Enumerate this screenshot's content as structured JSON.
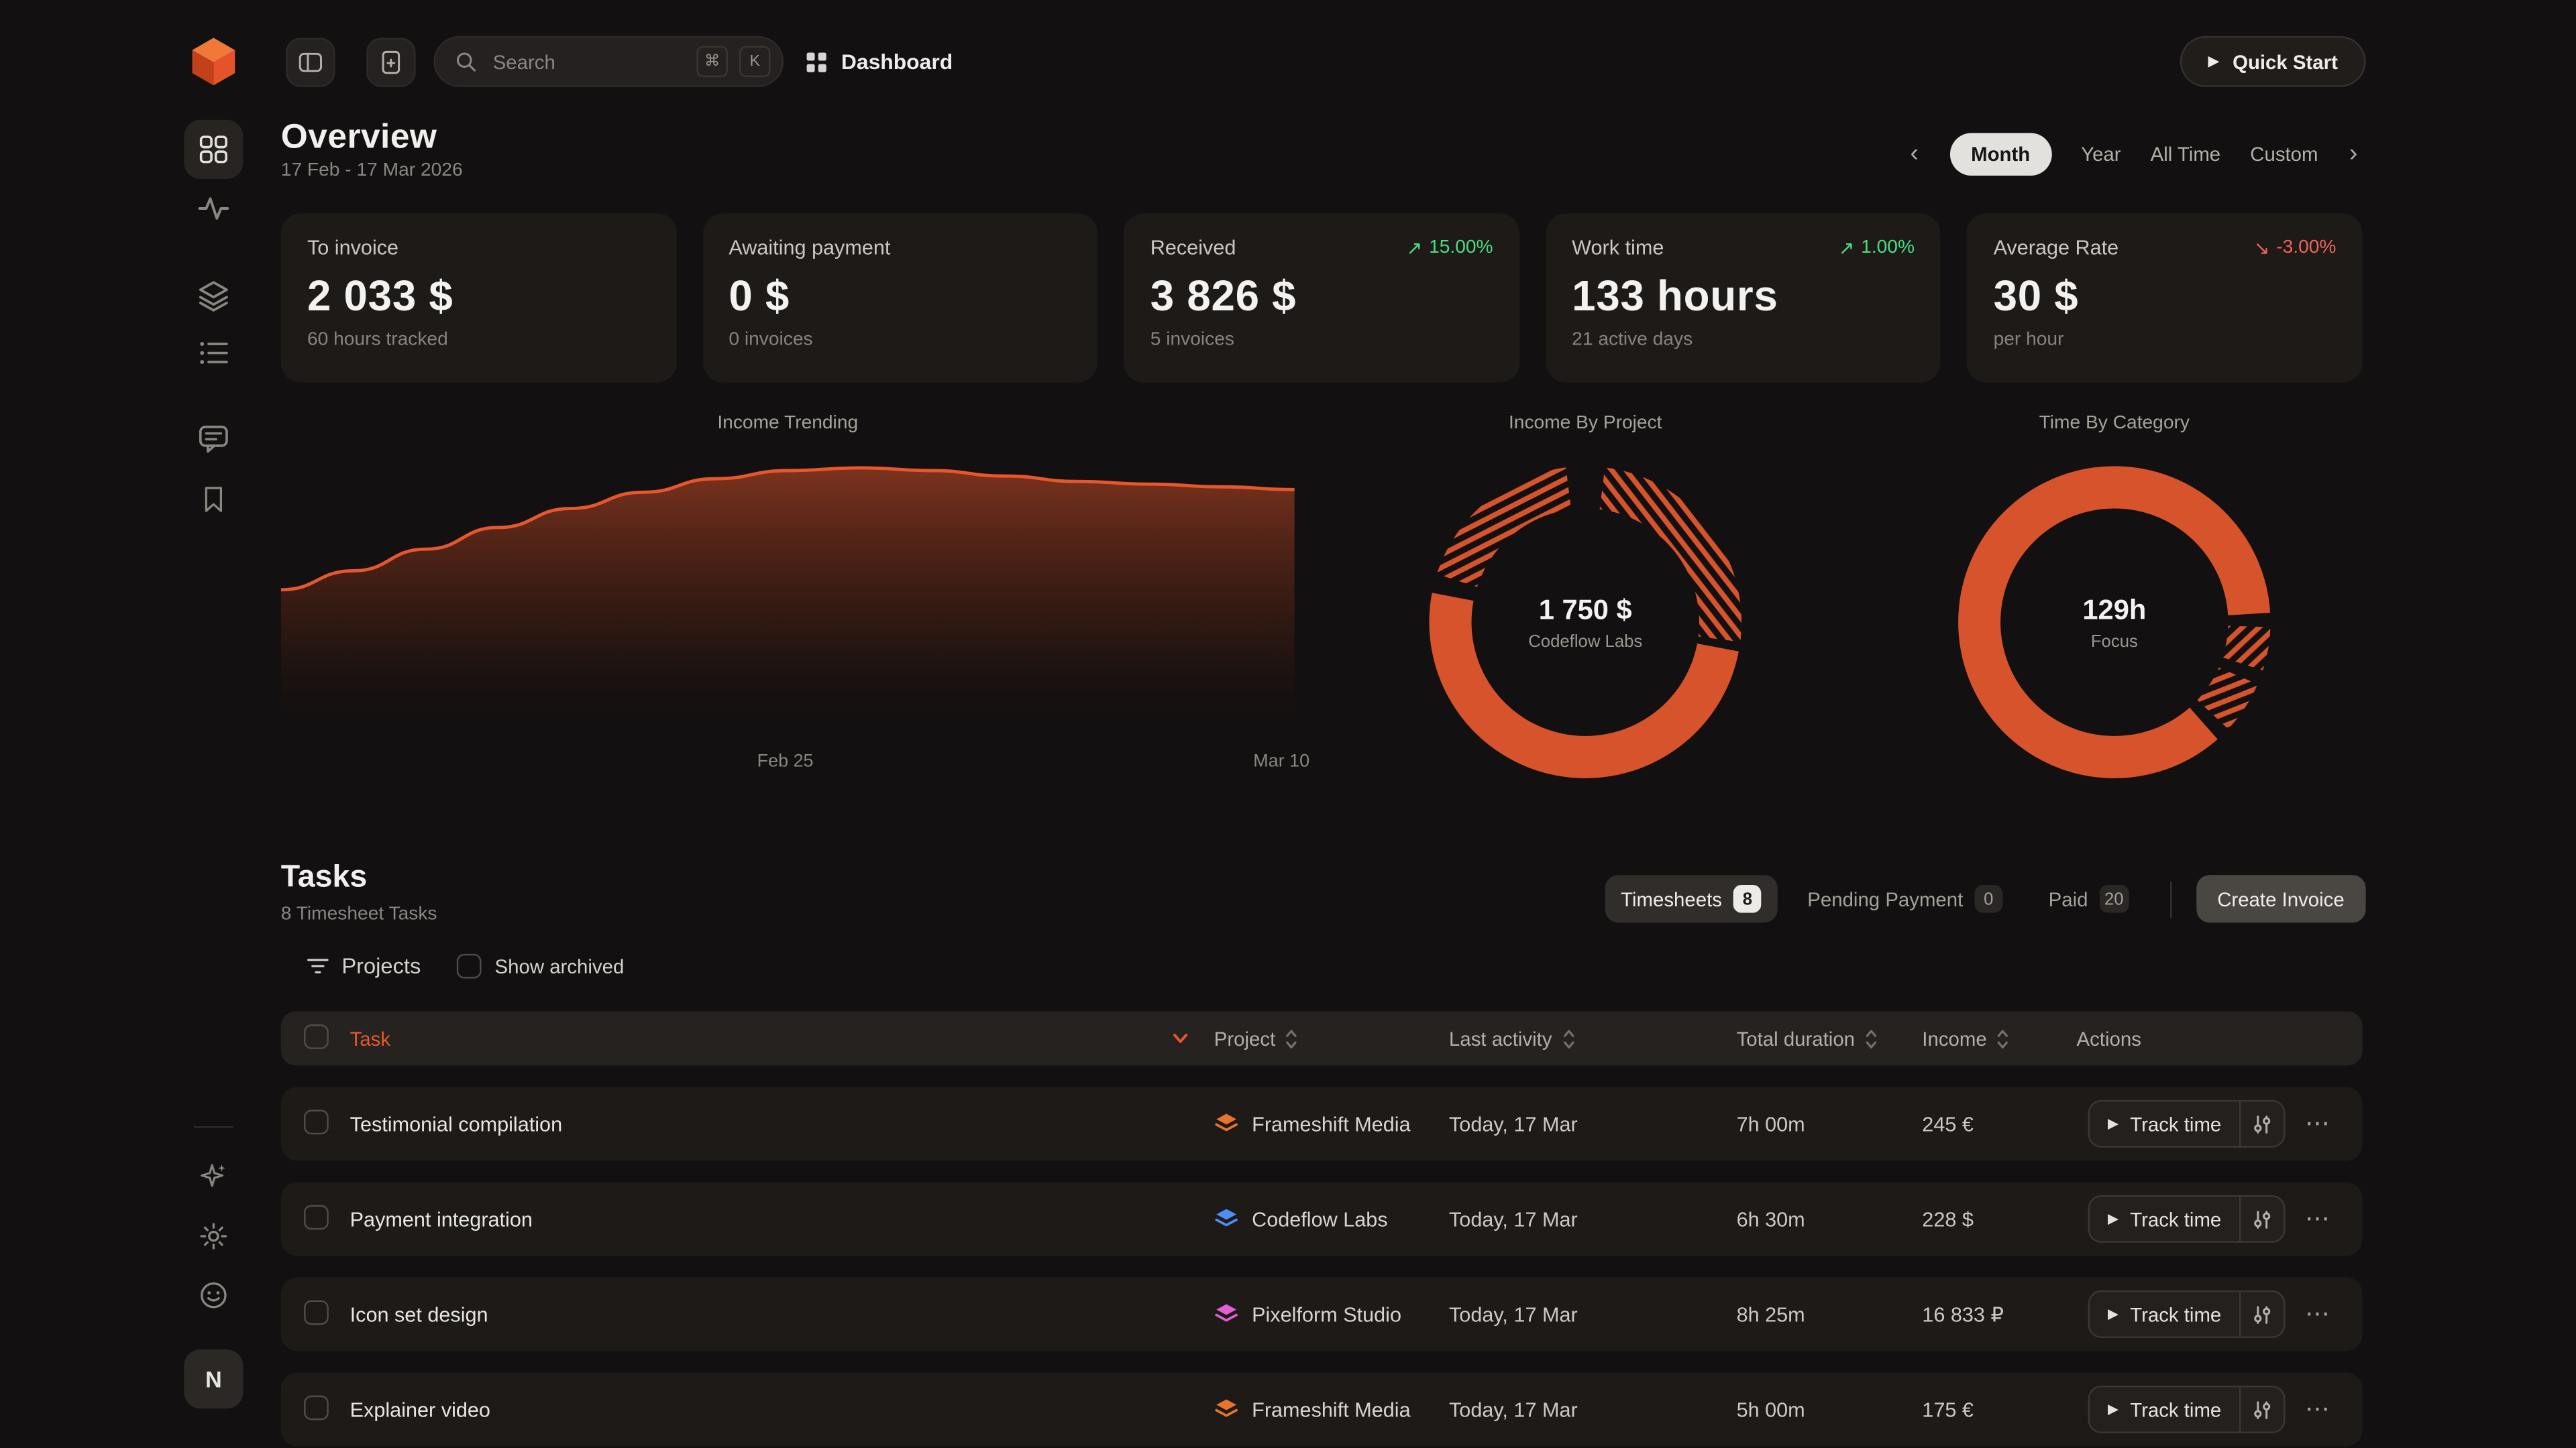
{
  "topbar": {
    "search": {
      "placeholder": "Search",
      "keys": [
        "⌘",
        "K"
      ]
    },
    "page_label": "Dashboard",
    "quick_start_label": "Quick Start",
    "play_glyph": "▶"
  },
  "sidebar": {
    "avatar_initial": "N"
  },
  "header": {
    "title": "Overview",
    "date_range": "17 Feb - 17 Mar 2026",
    "prev_glyph": "‹",
    "next_glyph": "›",
    "range_tabs": [
      {
        "label": "Month",
        "state": "active"
      },
      {
        "label": "Year",
        "state": ""
      },
      {
        "label": "All Time",
        "state": ""
      },
      {
        "label": "Custom",
        "state": ""
      }
    ]
  },
  "stats": [
    {
      "title": "To invoice",
      "value": "2 033 $",
      "sub": "60 hours tracked"
    },
    {
      "title": "Awaiting payment",
      "value": "0 $",
      "sub": "0 invoices"
    },
    {
      "title": "Received",
      "value": "3 826 $",
      "sub": "5 invoices",
      "trend": "15.00%",
      "dir": "up",
      "arrow": "↗"
    },
    {
      "title": "Work time",
      "value": "133 hours",
      "sub": "21 active days",
      "trend": "1.00%",
      "dir": "up",
      "arrow": "↗"
    },
    {
      "title": "Average Rate",
      "value": "30 $",
      "sub": "per hour",
      "trend": "-3.00%",
      "dir": "down",
      "arrow": "↘"
    }
  ],
  "charts": {
    "income_trending": {
      "title": "Income Trending",
      "x_labels": [
        "Feb 25",
        "Mar 10"
      ]
    },
    "income_by_project": {
      "title": "Income By Project",
      "center_value": "1 750 $",
      "center_label": "Codeflow Labs"
    },
    "time_by_category": {
      "title": "Time By Category",
      "center_value": "129h",
      "center_label": "Focus"
    }
  },
  "chart_data": [
    {
      "type": "area",
      "name": "income_trending",
      "title": "Income Trending",
      "x_axis": {
        "range_start": "17 Feb",
        "range_end": "17 Mar",
        "tick_labels": [
          "Feb 25",
          "Mar 10"
        ]
      },
      "values": [
        55,
        62,
        70,
        78,
        85,
        91,
        96,
        99,
        100,
        99,
        97,
        95,
        94,
        93,
        92
      ],
      "ylim": [
        0,
        100
      ],
      "note": "relative income level, y-axis unlabeled in UI"
    },
    {
      "type": "donut",
      "name": "income_by_project",
      "title": "Income By Project",
      "center_value": "1 750 $",
      "center_label": "Codeflow Labs",
      "segments": [
        {
          "label": null,
          "style": "hatch",
          "start": 0.02,
          "frac": 0.25
        },
        {
          "label": "Codeflow Labs",
          "style": "solid",
          "start": 0.28,
          "frac": 0.5
        },
        {
          "label": null,
          "style": "hatch",
          "start": 0.8,
          "frac": 0.18
        }
      ]
    },
    {
      "type": "donut",
      "name": "time_by_category",
      "title": "Time By Category",
      "center_value": "129h",
      "center_label": "Focus",
      "segments": [
        {
          "label": "Focus",
          "style": "solid",
          "start": 0.385,
          "frac": 0.855
        },
        {
          "label": null,
          "style": "hatch",
          "start": 0.255,
          "frac": 0.045
        },
        {
          "label": null,
          "style": "hatch",
          "start": 0.315,
          "frac": 0.055
        }
      ]
    }
  ],
  "tasks": {
    "title": "Tasks",
    "subtitle": "8 Timesheet Tasks",
    "tabs": [
      {
        "label": "Timesheets",
        "badge": "8",
        "state": "active"
      },
      {
        "label": "Pending Payment",
        "badge": "0",
        "state": ""
      },
      {
        "label": "Paid",
        "badge": "20",
        "state": ""
      }
    ],
    "create_invoice_label": "Create Invoice",
    "filters": {
      "projects_label": "Projects",
      "show_archived_label": "Show archived"
    },
    "columns": [
      "Task",
      "Project",
      "Last activity",
      "Total duration",
      "Income",
      "Actions"
    ],
    "track_time_label": "Track time",
    "play_glyph": "▶",
    "ellipsis_glyph": "⋯",
    "rows": [
      {
        "task": "Testimonial compilation",
        "project": "Frameshift Media",
        "color": "orange",
        "last_activity": "Today, 17 Mar",
        "duration": "7h 00m",
        "income": "245 €"
      },
      {
        "task": "Payment integration",
        "project": "Codeflow Labs",
        "color": "blue",
        "last_activity": "Today, 17 Mar",
        "duration": "6h 30m",
        "income": "228 $"
      },
      {
        "task": "Icon set design",
        "project": "Pixelform Studio",
        "color": "pink",
        "last_activity": "Today, 17 Mar",
        "duration": "8h 25m",
        "income": "16 833 ₽"
      },
      {
        "task": "Explainer video",
        "project": "Frameshift Media",
        "color": "orange",
        "last_activity": "Today, 17 Mar",
        "duration": "5h 00m",
        "income": "175 €"
      }
    ]
  },
  "colors": {
    "accent": "#e8562c",
    "donut": "#d7532b",
    "green": "#4ade80",
    "red": "#f0645a"
  }
}
